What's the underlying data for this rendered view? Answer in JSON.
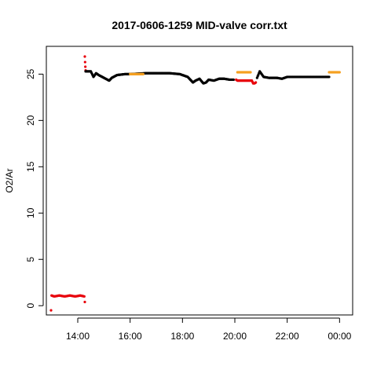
{
  "chart_data": {
    "type": "scatter",
    "title": "2017-0606-1259 MID-valve corr.txt",
    "xlabel": "",
    "ylabel": "O2/Ar",
    "x_unit": "clock time (hours)",
    "xlim": [
      12.8,
      24.5
    ],
    "ylim": [
      -1,
      28
    ],
    "x_ticks": [
      {
        "value": 14,
        "label": "14:00"
      },
      {
        "value": 16,
        "label": "16:00"
      },
      {
        "value": 18,
        "label": "18:00"
      },
      {
        "value": 20,
        "label": "20:00"
      },
      {
        "value": 22,
        "label": "22:00"
      },
      {
        "value": 24,
        "label": "00:00"
      }
    ],
    "y_ticks": [
      {
        "value": 0,
        "label": "0"
      },
      {
        "value": 5,
        "label": "5"
      },
      {
        "value": 10,
        "label": "10"
      },
      {
        "value": 15,
        "label": "15"
      },
      {
        "value": 20,
        "label": "20"
      },
      {
        "value": 25,
        "label": "25"
      }
    ],
    "grid": false,
    "legend": "none",
    "series": [
      {
        "color": "#e8000b",
        "x": [
          12.98,
          13.0,
          13.1,
          13.3,
          13.5,
          13.7,
          13.9,
          14.1,
          14.25,
          14.27,
          14.27,
          14.28,
          14.29,
          14.3,
          20.05,
          20.1,
          20.65,
          20.7,
          20.75,
          20.8
        ],
        "y": [
          -0.5,
          1.1,
          1.0,
          1.1,
          1.0,
          1.1,
          1.0,
          1.1,
          1.0,
          0.4,
          26.9,
          26.3,
          25.8,
          25.4,
          24.4,
          24.3,
          24.3,
          24.0,
          24.0,
          24.1
        ]
      },
      {
        "color": "#000000",
        "x": [
          14.3,
          14.5,
          14.6,
          14.7,
          14.8,
          15.0,
          15.2,
          15.3,
          15.5,
          15.8,
          16.0,
          16.6,
          17.0,
          17.5,
          17.9,
          18.2,
          18.4,
          18.5,
          18.65,
          18.8,
          18.9,
          19.0,
          19.2,
          19.4,
          19.6,
          19.8,
          19.95,
          20.85,
          20.95,
          21.0,
          21.1,
          21.3,
          21.6,
          21.8,
          22.0,
          22.5,
          23.0,
          23.5,
          23.6
        ],
        "y": [
          25.3,
          25.3,
          24.7,
          25.1,
          24.9,
          24.6,
          24.3,
          24.6,
          24.9,
          25.0,
          25.0,
          25.1,
          25.1,
          25.1,
          25.0,
          24.7,
          24.1,
          24.3,
          24.5,
          24.0,
          24.1,
          24.4,
          24.3,
          24.5,
          24.5,
          24.4,
          24.4,
          24.6,
          25.3,
          25.1,
          24.7,
          24.6,
          24.6,
          24.5,
          24.7,
          24.7,
          24.7,
          24.7,
          24.7
        ]
      },
      {
        "color": "#f5a020",
        "x": [
          16.0,
          16.1,
          16.2,
          16.3,
          16.4,
          16.5,
          20.1,
          20.2,
          20.3,
          20.4,
          20.5,
          20.6,
          23.6,
          23.7,
          23.8,
          23.9,
          24.0
        ],
        "y": [
          25.0,
          25.0,
          25.0,
          25.0,
          25.0,
          25.0,
          25.2,
          25.2,
          25.2,
          25.2,
          25.2,
          25.2,
          25.2,
          25.2,
          25.2,
          25.2,
          25.2
        ]
      }
    ]
  }
}
